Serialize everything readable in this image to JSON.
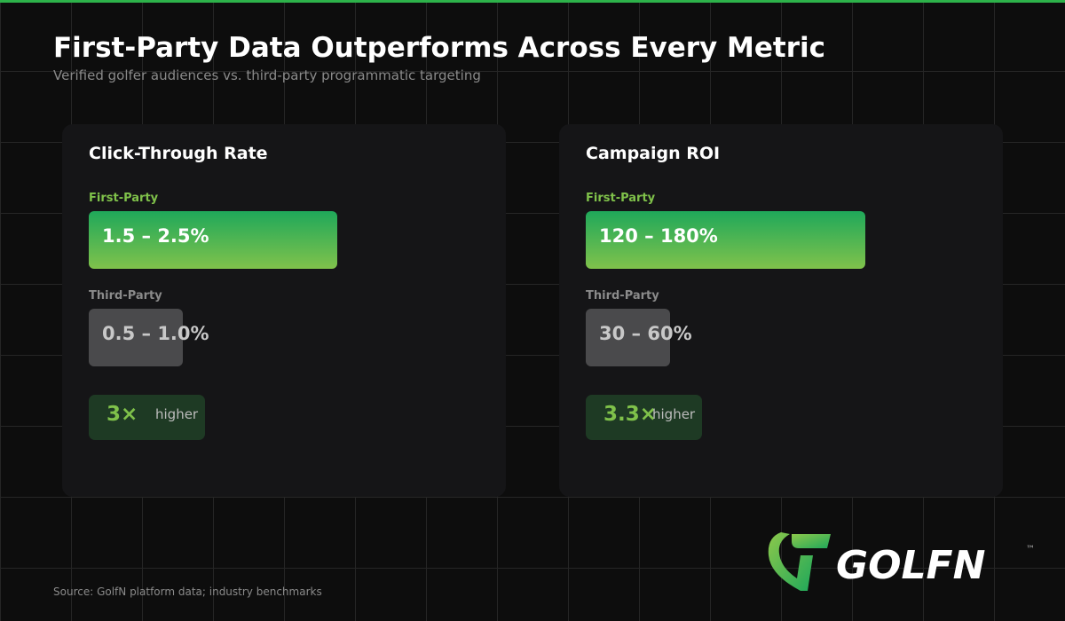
{
  "title": "First-Party Data Outperforms Across Every Metric",
  "subtitle": "Verified golfer audiences vs. third-party programmatic targeting",
  "cards": [
    {
      "title": "Click-Through Rate",
      "first_label": "First-Party",
      "first_value": "1.5 – 2.5%",
      "third_label": "Third-Party",
      "third_value": "0.5 – 1.0%",
      "multiplier": "3×",
      "multiplier_suffix": "higher"
    },
    {
      "title": "Campaign ROI",
      "first_label": "First-Party",
      "first_value": "120 – 180%",
      "third_label": "Third-Party",
      "third_value": "30 – 60%",
      "multiplier": "3.3×",
      "multiplier_suffix": "higher"
    }
  ],
  "source": "Source: GolfN platform data; industry benchmarks",
  "logo": {
    "text": "GOLFN",
    "tm": "™"
  },
  "colors": {
    "accent": "#2db24a",
    "first_party_top": "#1fa85a",
    "first_party_bottom": "#80c24b",
    "third_party": "#4a4a4c",
    "badge": "#1e3a24"
  }
}
